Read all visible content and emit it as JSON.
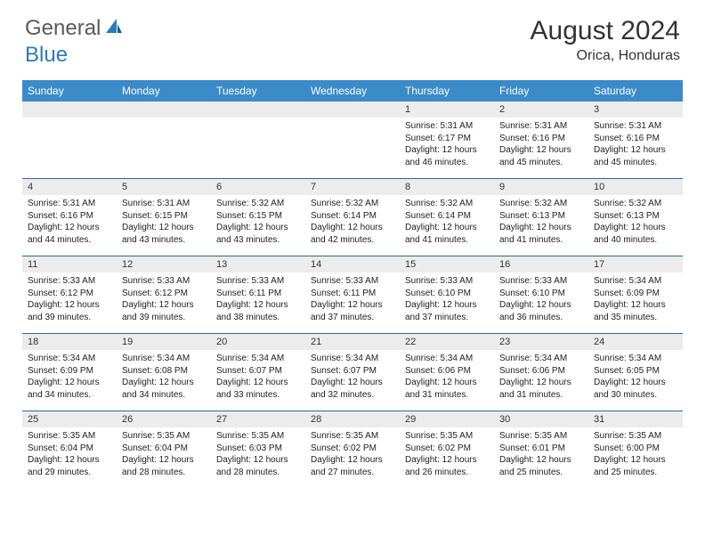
{
  "logo": {
    "text1": "General",
    "text2": "Blue"
  },
  "title": "August 2024",
  "location": "Orica, Honduras",
  "colors": {
    "header_bg": "#3b8bc9",
    "row_border": "#2b6ba0",
    "daybar_bg": "#ececec",
    "logo_gray": "#5a5a5a",
    "logo_blue": "#2b7bbd"
  },
  "dayHeaders": [
    "Sunday",
    "Monday",
    "Tuesday",
    "Wednesday",
    "Thursday",
    "Friday",
    "Saturday"
  ],
  "weeks": [
    [
      null,
      null,
      null,
      null,
      {
        "n": "1",
        "sr": "5:31 AM",
        "ss": "6:17 PM",
        "dl1": "12 hours",
        "dl2": "and 46 minutes."
      },
      {
        "n": "2",
        "sr": "5:31 AM",
        "ss": "6:16 PM",
        "dl1": "12 hours",
        "dl2": "and 45 minutes."
      },
      {
        "n": "3",
        "sr": "5:31 AM",
        "ss": "6:16 PM",
        "dl1": "12 hours",
        "dl2": "and 45 minutes."
      }
    ],
    [
      {
        "n": "4",
        "sr": "5:31 AM",
        "ss": "6:16 PM",
        "dl1": "12 hours",
        "dl2": "and 44 minutes."
      },
      {
        "n": "5",
        "sr": "5:31 AM",
        "ss": "6:15 PM",
        "dl1": "12 hours",
        "dl2": "and 43 minutes."
      },
      {
        "n": "6",
        "sr": "5:32 AM",
        "ss": "6:15 PM",
        "dl1": "12 hours",
        "dl2": "and 43 minutes."
      },
      {
        "n": "7",
        "sr": "5:32 AM",
        "ss": "6:14 PM",
        "dl1": "12 hours",
        "dl2": "and 42 minutes."
      },
      {
        "n": "8",
        "sr": "5:32 AM",
        "ss": "6:14 PM",
        "dl1": "12 hours",
        "dl2": "and 41 minutes."
      },
      {
        "n": "9",
        "sr": "5:32 AM",
        "ss": "6:13 PM",
        "dl1": "12 hours",
        "dl2": "and 41 minutes."
      },
      {
        "n": "10",
        "sr": "5:32 AM",
        "ss": "6:13 PM",
        "dl1": "12 hours",
        "dl2": "and 40 minutes."
      }
    ],
    [
      {
        "n": "11",
        "sr": "5:33 AM",
        "ss": "6:12 PM",
        "dl1": "12 hours",
        "dl2": "and 39 minutes."
      },
      {
        "n": "12",
        "sr": "5:33 AM",
        "ss": "6:12 PM",
        "dl1": "12 hours",
        "dl2": "and 39 minutes."
      },
      {
        "n": "13",
        "sr": "5:33 AM",
        "ss": "6:11 PM",
        "dl1": "12 hours",
        "dl2": "and 38 minutes."
      },
      {
        "n": "14",
        "sr": "5:33 AM",
        "ss": "6:11 PM",
        "dl1": "12 hours",
        "dl2": "and 37 minutes."
      },
      {
        "n": "15",
        "sr": "5:33 AM",
        "ss": "6:10 PM",
        "dl1": "12 hours",
        "dl2": "and 37 minutes."
      },
      {
        "n": "16",
        "sr": "5:33 AM",
        "ss": "6:10 PM",
        "dl1": "12 hours",
        "dl2": "and 36 minutes."
      },
      {
        "n": "17",
        "sr": "5:34 AM",
        "ss": "6:09 PM",
        "dl1": "12 hours",
        "dl2": "and 35 minutes."
      }
    ],
    [
      {
        "n": "18",
        "sr": "5:34 AM",
        "ss": "6:09 PM",
        "dl1": "12 hours",
        "dl2": "and 34 minutes."
      },
      {
        "n": "19",
        "sr": "5:34 AM",
        "ss": "6:08 PM",
        "dl1": "12 hours",
        "dl2": "and 34 minutes."
      },
      {
        "n": "20",
        "sr": "5:34 AM",
        "ss": "6:07 PM",
        "dl1": "12 hours",
        "dl2": "and 33 minutes."
      },
      {
        "n": "21",
        "sr": "5:34 AM",
        "ss": "6:07 PM",
        "dl1": "12 hours",
        "dl2": "and 32 minutes."
      },
      {
        "n": "22",
        "sr": "5:34 AM",
        "ss": "6:06 PM",
        "dl1": "12 hours",
        "dl2": "and 31 minutes."
      },
      {
        "n": "23",
        "sr": "5:34 AM",
        "ss": "6:06 PM",
        "dl1": "12 hours",
        "dl2": "and 31 minutes."
      },
      {
        "n": "24",
        "sr": "5:34 AM",
        "ss": "6:05 PM",
        "dl1": "12 hours",
        "dl2": "and 30 minutes."
      }
    ],
    [
      {
        "n": "25",
        "sr": "5:35 AM",
        "ss": "6:04 PM",
        "dl1": "12 hours",
        "dl2": "and 29 minutes."
      },
      {
        "n": "26",
        "sr": "5:35 AM",
        "ss": "6:04 PM",
        "dl1": "12 hours",
        "dl2": "and 28 minutes."
      },
      {
        "n": "27",
        "sr": "5:35 AM",
        "ss": "6:03 PM",
        "dl1": "12 hours",
        "dl2": "and 28 minutes."
      },
      {
        "n": "28",
        "sr": "5:35 AM",
        "ss": "6:02 PM",
        "dl1": "12 hours",
        "dl2": "and 27 minutes."
      },
      {
        "n": "29",
        "sr": "5:35 AM",
        "ss": "6:02 PM",
        "dl1": "12 hours",
        "dl2": "and 26 minutes."
      },
      {
        "n": "30",
        "sr": "5:35 AM",
        "ss": "6:01 PM",
        "dl1": "12 hours",
        "dl2": "and 25 minutes."
      },
      {
        "n": "31",
        "sr": "5:35 AM",
        "ss": "6:00 PM",
        "dl1": "12 hours",
        "dl2": "and 25 minutes."
      }
    ]
  ],
  "labels": {
    "sunrise": "Sunrise:",
    "sunset": "Sunset:",
    "daylight": "Daylight:"
  }
}
